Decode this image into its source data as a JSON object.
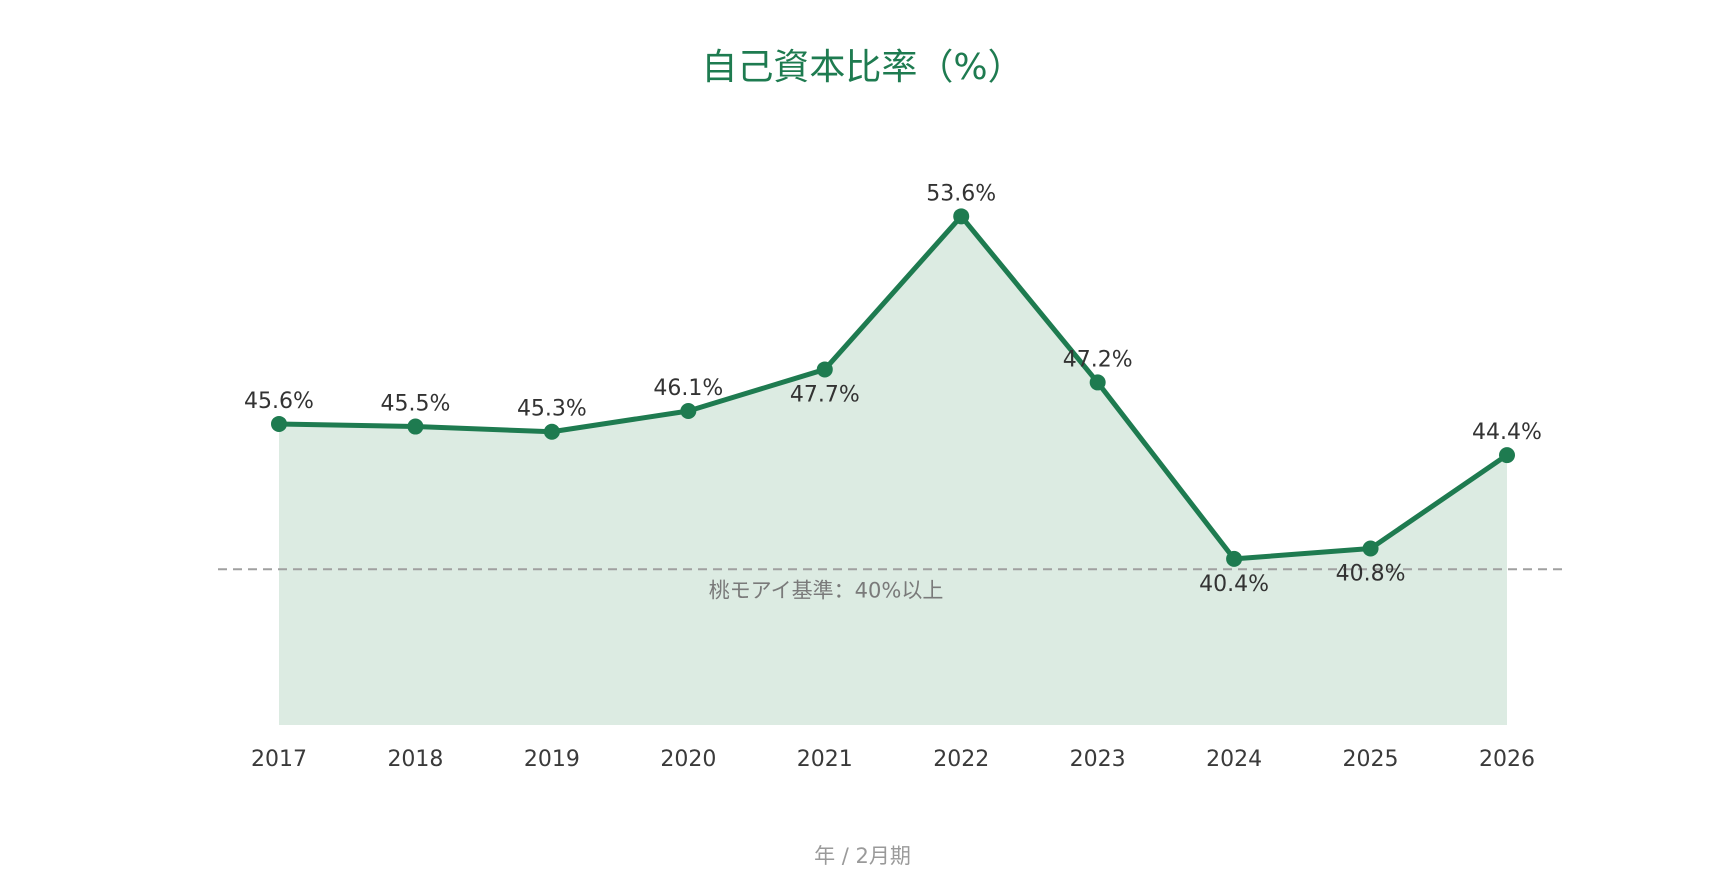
{
  "chart_data": {
    "type": "area",
    "title": "自己資本比率（%）",
    "xlabel": "年 / 2月期",
    "ylabel": "",
    "categories": [
      "2017",
      "2018",
      "2019",
      "2020",
      "2021",
      "2022",
      "2023",
      "2024",
      "2025",
      "2026"
    ],
    "series": [
      {
        "values": [
          45.6,
          45.5,
          45.3,
          46.1,
          47.7,
          53.6,
          47.2,
          40.4,
          40.8,
          44.4
        ],
        "labels": [
          "45.6%",
          "45.5%",
          "45.3%",
          "46.1%",
          "47.7%",
          "53.6%",
          "47.2%",
          "40.4%",
          "40.8%",
          "44.4%"
        ],
        "label_positions": [
          "above",
          "above",
          "above",
          "above",
          "below",
          "above",
          "above",
          "below",
          "below",
          "above"
        ]
      }
    ],
    "reference_line": {
      "value": 40.0,
      "label": "桃モアイ基準：40%以上",
      "style": "dashed"
    },
    "ylim": [
      34,
      55
    ],
    "grid": false,
    "legend": "none",
    "colors": {
      "line": "#1e7b50",
      "fill": "#dcebe2",
      "reference": "#a0a0a0",
      "title": "#1e7b50"
    }
  }
}
